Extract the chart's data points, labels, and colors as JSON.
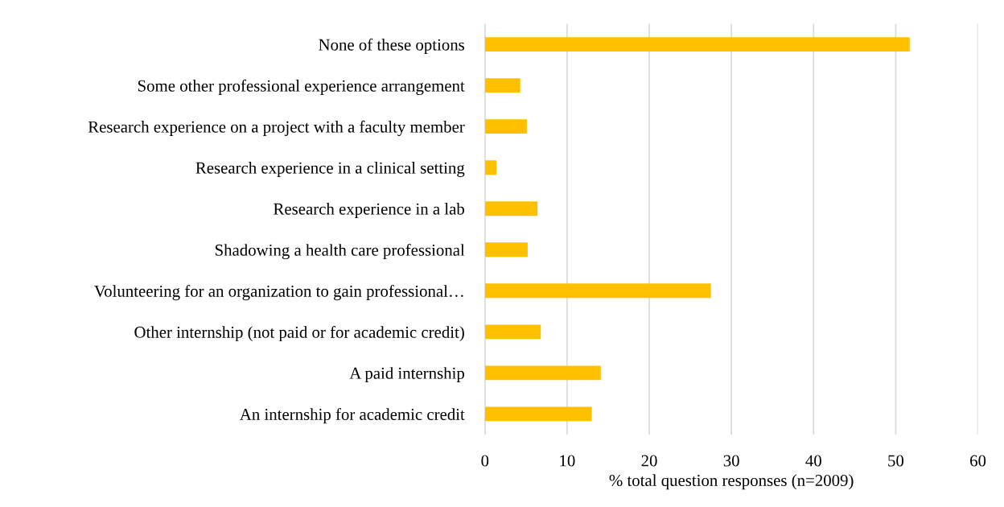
{
  "chart_data": {
    "type": "bar",
    "orientation": "horizontal",
    "categories": [
      "None of these options",
      "Some other professional experience arrangement",
      "Research experience on a project with a faculty member",
      "Research experience in a clinical setting",
      "Research experience in a lab",
      "Shadowing a health care professional",
      "Volunteering for an organization to gain professional…",
      "Other internship (not paid or for academic credit)",
      "A paid internship",
      "An internship for academic credit"
    ],
    "values": [
      51.7,
      4.3,
      5.1,
      1.4,
      6.4,
      5.2,
      27.5,
      6.8,
      14.1,
      13.0
    ],
    "color": "#ffc000",
    "xlabel": "% total question responses (n=2009)",
    "xlim": [
      0,
      60
    ],
    "xticks": [
      0,
      10,
      20,
      30,
      40,
      50,
      60
    ],
    "grid": "x"
  }
}
